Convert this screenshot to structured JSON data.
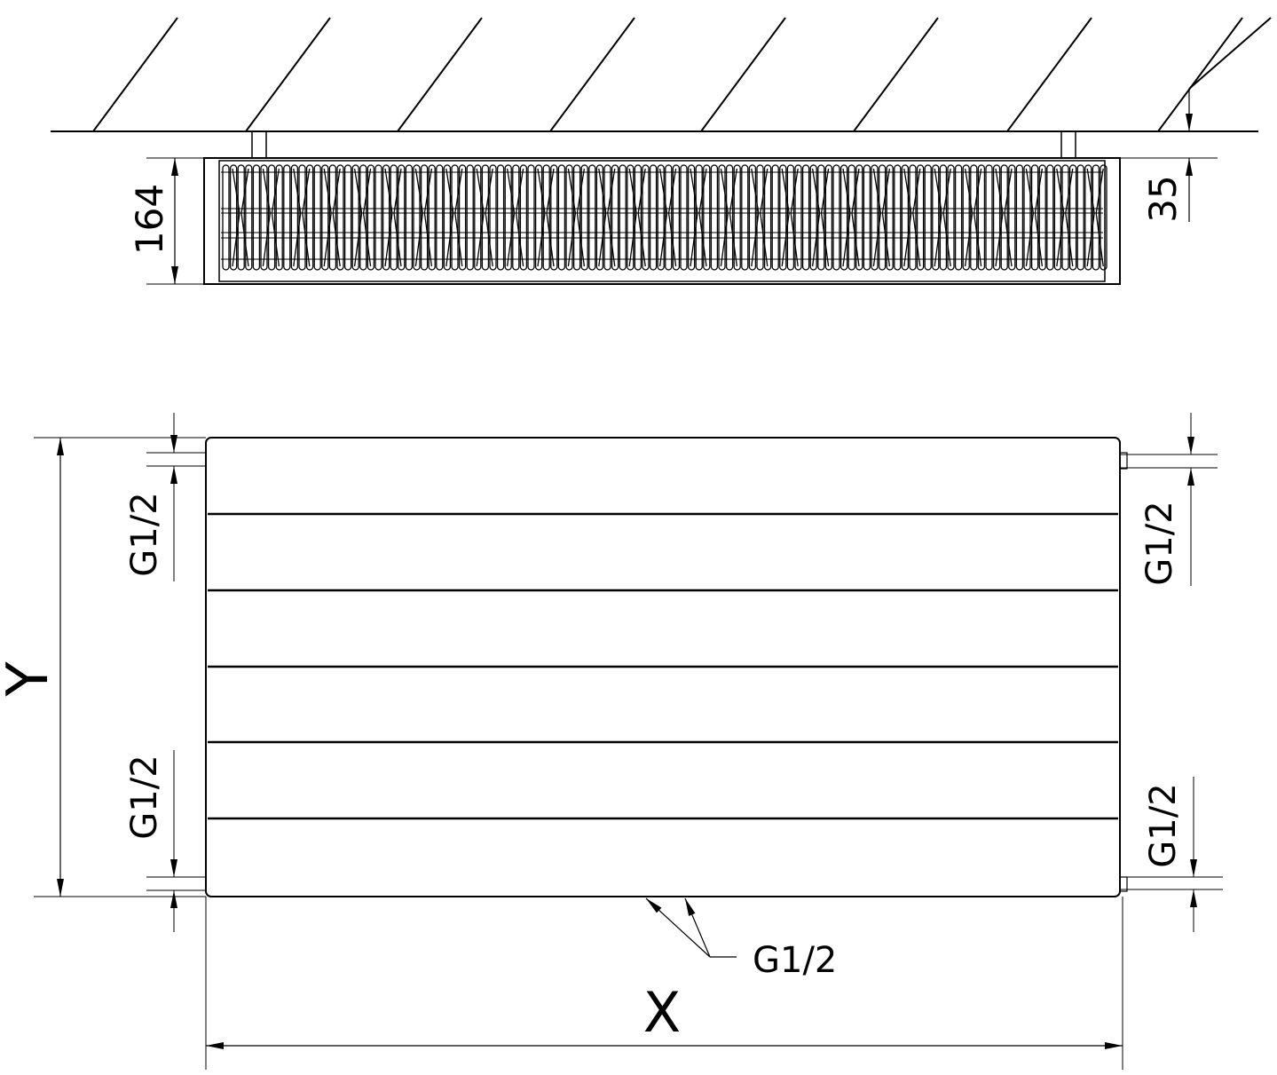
{
  "top_view": {
    "height_label": "164",
    "offset_label": "35"
  },
  "front_view": {
    "height_label": "Y",
    "width_label": "X",
    "left_top_connection": "G1/2",
    "left_bottom_connection": "G1/2",
    "right_top_connection": "G1/2",
    "right_bottom_connection": "G1/2",
    "bottom_connection": "G1/2"
  },
  "colors": {
    "line": "#000000",
    "background": "#ffffff"
  }
}
